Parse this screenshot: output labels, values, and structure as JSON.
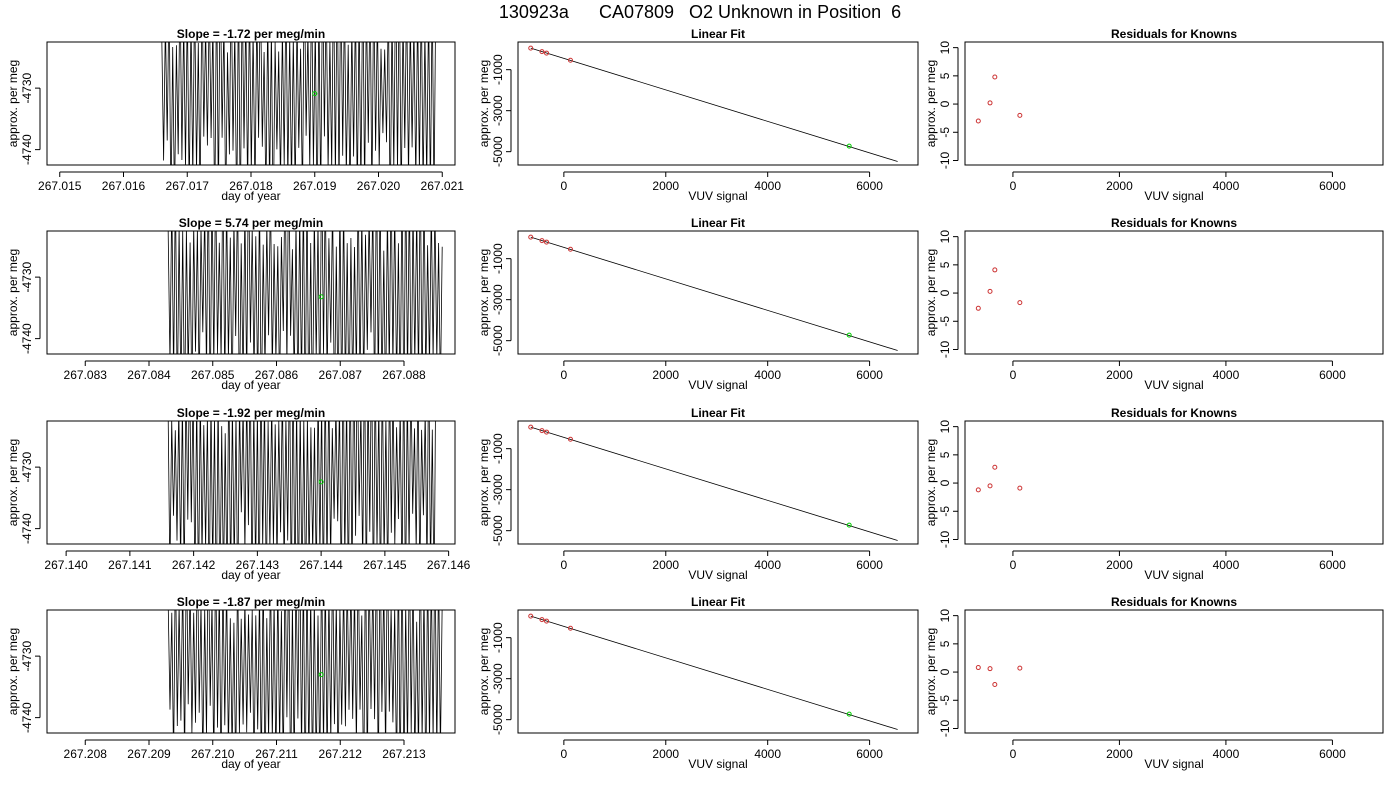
{
  "title": "130923a      CA07809   O2 Unknown in Position  6",
  "chart_data": [
    {
      "type": "line",
      "row": 0,
      "col": 0,
      "title": "Slope =  -1.72  per meg/min",
      "xlabel": "day of year",
      "ylabel": "approx. per meg",
      "xlim": [
        267.0148,
        267.0212
      ],
      "ylim": [
        -4742.5,
        -4722.5
      ],
      "xticks": [
        "267.015",
        "267.016",
        "267.017",
        "267.018",
        "267.019",
        "267.020",
        "267.021"
      ],
      "xtick_values": [
        267.015,
        267.016,
        267.017,
        267.018,
        267.019,
        267.02,
        267.021
      ],
      "yticks": [
        "-4740",
        "-4730"
      ],
      "ytick_values": [
        -4740,
        -4730
      ],
      "x_start": 267.0166,
      "x_end": 267.0209,
      "trace_center": -4731,
      "trace_amplitude": 18,
      "cycles": 75,
      "seed": 11,
      "marker": {
        "x": 267.019,
        "y": -4730.9,
        "color": "#00cc00"
      }
    },
    {
      "type": "line",
      "row": 0,
      "col": 1,
      "title": "Linear Fit",
      "xlabel": "VUV signal",
      "ylabel": "approx. per meg",
      "xlim": [
        -900,
        6950
      ],
      "ylim": [
        -5650,
        350
      ],
      "xticks": [
        "0",
        "2000",
        "4000",
        "6000"
      ],
      "xtick_values": [
        0,
        2000,
        4000,
        6000
      ],
      "yticks": [
        "-5000",
        "-3000",
        "-1000"
      ],
      "ytick_values": [
        -5000,
        -3000,
        -1000
      ],
      "fit_line": {
        "x": [
          -650,
          6550
        ],
        "y": [
          50,
          -5480
        ]
      },
      "knowns": {
        "x": [
          -650,
          -430,
          -340,
          130
        ],
        "y": [
          50,
          -120,
          -190,
          -540
        ]
      },
      "unknown": {
        "x": [
          5600
        ],
        "y": [
          -4730
        ]
      },
      "known_color": "#cc3333",
      "unknown_color": "#00cc00"
    },
    {
      "type": "scatter",
      "row": 0,
      "col": 2,
      "title": "Residuals for Knowns",
      "xlabel": "VUV signal",
      "ylabel": "approx. per meg",
      "xlim": [
        -900,
        6950
      ],
      "ylim": [
        -10.8,
        11
      ],
      "xticks": [
        "0",
        "2000",
        "4000",
        "6000"
      ],
      "xtick_values": [
        0,
        2000,
        4000,
        6000
      ],
      "yticks": [
        "-10",
        "-5",
        "0",
        "5",
        "10"
      ],
      "ytick_values": [
        -10,
        -5,
        0,
        5,
        10
      ],
      "points": {
        "x": [
          -650,
          -430,
          -340,
          130
        ],
        "y": [
          -3.0,
          0.2,
          4.8,
          -2.0
        ]
      },
      "point_color": "#cc3333"
    },
    {
      "type": "line",
      "row": 1,
      "col": 0,
      "title": "Slope =  5.74  per meg/min",
      "xlabel": "day of year",
      "ylabel": "approx. per meg",
      "xlim": [
        267.0824,
        267.0888
      ],
      "ylim": [
        -4742.5,
        -4722.5
      ],
      "xticks": [
        "267.083",
        "267.084",
        "267.085",
        "267.086",
        "267.087",
        "267.088"
      ],
      "xtick_values": [
        267.083,
        267.084,
        267.085,
        267.086,
        267.087,
        267.088
      ],
      "yticks": [
        "-4740",
        "-4730"
      ],
      "ytick_values": [
        -4740,
        -4730
      ],
      "x_start": 267.0843,
      "x_end": 267.0886,
      "trace_center": -4732,
      "trace_amplitude": 18,
      "cycles": 75,
      "seed": 23,
      "marker": {
        "x": 267.0867,
        "y": -4733.2,
        "color": "#00cc00"
      }
    },
    {
      "type": "line",
      "row": 1,
      "col": 1,
      "title": "Linear Fit",
      "xlabel": "VUV signal",
      "ylabel": "approx. per meg",
      "xlim": [
        -900,
        6950
      ],
      "ylim": [
        -5650,
        350
      ],
      "xticks": [
        "0",
        "2000",
        "4000",
        "6000"
      ],
      "xtick_values": [
        0,
        2000,
        4000,
        6000
      ],
      "yticks": [
        "-5000",
        "-3000",
        "-1000"
      ],
      "ytick_values": [
        -5000,
        -3000,
        -1000
      ],
      "fit_line": {
        "x": [
          -650,
          6550
        ],
        "y": [
          50,
          -5480
        ]
      },
      "knowns": {
        "x": [
          -650,
          -430,
          -340,
          130
        ],
        "y": [
          50,
          -120,
          -190,
          -540
        ]
      },
      "unknown": {
        "x": [
          5600
        ],
        "y": [
          -4730
        ]
      },
      "known_color": "#cc3333",
      "unknown_color": "#00cc00"
    },
    {
      "type": "scatter",
      "row": 1,
      "col": 2,
      "title": "Residuals for Knowns",
      "xlabel": "VUV signal",
      "ylabel": "approx. per meg",
      "xlim": [
        -900,
        6950
      ],
      "ylim": [
        -10.8,
        11
      ],
      "xticks": [
        "0",
        "2000",
        "4000",
        "6000"
      ],
      "xtick_values": [
        0,
        2000,
        4000,
        6000
      ],
      "yticks": [
        "-10",
        "-5",
        "0",
        "5",
        "10"
      ],
      "ytick_values": [
        -10,
        -5,
        0,
        5,
        10
      ],
      "points": {
        "x": [
          -650,
          -430,
          -340,
          130
        ],
        "y": [
          -2.7,
          0.3,
          4.1,
          -1.7
        ]
      },
      "point_color": "#cc3333"
    },
    {
      "type": "line",
      "row": 2,
      "col": 0,
      "title": "Slope =  -1.92  per meg/min",
      "xlabel": "day of year",
      "ylabel": "approx. per meg",
      "xlim": [
        267.1397,
        267.1461
      ],
      "ylim": [
        -4742.5,
        -4722.5
      ],
      "xticks": [
        "267.140",
        "267.141",
        "267.142",
        "267.143",
        "267.144",
        "267.145",
        "267.146"
      ],
      "xtick_values": [
        267.14,
        267.141,
        267.142,
        267.143,
        267.144,
        267.145,
        267.146
      ],
      "yticks": [
        "-4740",
        "-4730"
      ],
      "ytick_values": [
        -4740,
        -4730
      ],
      "x_start": 267.1416,
      "x_end": 267.1458,
      "trace_center": -4731,
      "trace_amplitude": 18,
      "cycles": 75,
      "seed": 37,
      "marker": {
        "x": 267.144,
        "y": -4732.4,
        "color": "#00cc00"
      }
    },
    {
      "type": "line",
      "row": 2,
      "col": 1,
      "title": "Linear Fit",
      "xlabel": "VUV signal",
      "ylabel": "approx. per meg",
      "xlim": [
        -900,
        6950
      ],
      "ylim": [
        -5650,
        350
      ],
      "xticks": [
        "0",
        "2000",
        "4000",
        "6000"
      ],
      "xtick_values": [
        0,
        2000,
        4000,
        6000
      ],
      "yticks": [
        "-5000",
        "-3000",
        "-1000"
      ],
      "ytick_values": [
        -5000,
        -3000,
        -1000
      ],
      "fit_line": {
        "x": [
          -650,
          6550
        ],
        "y": [
          50,
          -5480
        ]
      },
      "knowns": {
        "x": [
          -650,
          -430,
          -340,
          130
        ],
        "y": [
          50,
          -120,
          -190,
          -540
        ]
      },
      "unknown": {
        "x": [
          5600
        ],
        "y": [
          -4730
        ]
      },
      "known_color": "#cc3333",
      "unknown_color": "#00cc00"
    },
    {
      "type": "scatter",
      "row": 2,
      "col": 2,
      "title": "Residuals for Knowns",
      "xlabel": "VUV signal",
      "ylabel": "approx. per meg",
      "xlim": [
        -900,
        6950
      ],
      "ylim": [
        -10.8,
        11
      ],
      "xticks": [
        "0",
        "2000",
        "4000",
        "6000"
      ],
      "xtick_values": [
        0,
        2000,
        4000,
        6000
      ],
      "yticks": [
        "-10",
        "-5",
        "0",
        "5",
        "10"
      ],
      "ytick_values": [
        -10,
        -5,
        0,
        5,
        10
      ],
      "points": {
        "x": [
          -650,
          -430,
          -340,
          130
        ],
        "y": [
          -1.2,
          -0.5,
          2.8,
          -0.9
        ]
      },
      "point_color": "#cc3333"
    },
    {
      "type": "line",
      "row": 3,
      "col": 0,
      "title": "Slope =  -1.87  per meg/min",
      "xlabel": "day of year",
      "ylabel": "approx. per meg",
      "xlim": [
        267.2074,
        267.2138
      ],
      "ylim": [
        -4742.5,
        -4722.5
      ],
      "xticks": [
        "267.208",
        "267.209",
        "267.210",
        "267.211",
        "267.212",
        "267.213"
      ],
      "xtick_values": [
        267.208,
        267.209,
        267.21,
        267.211,
        267.212,
        267.213
      ],
      "yticks": [
        "-4740",
        "-4730"
      ],
      "ytick_values": [
        -4740,
        -4730
      ],
      "x_start": 267.2093,
      "x_end": 267.2136,
      "trace_center": -4731,
      "trace_amplitude": 18,
      "cycles": 75,
      "seed": 53,
      "marker": {
        "x": 267.2117,
        "y": -4733.0,
        "color": "#00cc00"
      }
    },
    {
      "type": "line",
      "row": 3,
      "col": 1,
      "title": "Linear Fit",
      "xlabel": "VUV signal",
      "ylabel": "approx. per meg",
      "xlim": [
        -900,
        6950
      ],
      "ylim": [
        -5650,
        350
      ],
      "xticks": [
        "0",
        "2000",
        "4000",
        "6000"
      ],
      "xtick_values": [
        0,
        2000,
        4000,
        6000
      ],
      "yticks": [
        "-5000",
        "-3000",
        "-1000"
      ],
      "ytick_values": [
        -5000,
        -3000,
        -1000
      ],
      "fit_line": {
        "x": [
          -650,
          6550
        ],
        "y": [
          50,
          -5480
        ]
      },
      "knowns": {
        "x": [
          -650,
          -430,
          -340,
          130
        ],
        "y": [
          50,
          -120,
          -190,
          -540
        ]
      },
      "unknown": {
        "x": [
          5600
        ],
        "y": [
          -4730
        ]
      },
      "known_color": "#cc3333",
      "unknown_color": "#00cc00"
    },
    {
      "type": "scatter",
      "row": 3,
      "col": 2,
      "title": "Residuals for Knowns",
      "xlabel": "VUV signal",
      "ylabel": "approx. per meg",
      "xlim": [
        -900,
        6950
      ],
      "ylim": [
        -10.8,
        11
      ],
      "xticks": [
        "0",
        "2000",
        "4000",
        "6000"
      ],
      "xtick_values": [
        0,
        2000,
        4000,
        6000
      ],
      "yticks": [
        "-10",
        "-5",
        "0",
        "5",
        "10"
      ],
      "ytick_values": [
        -10,
        -5,
        0,
        5,
        10
      ],
      "points": {
        "x": [
          -650,
          -430,
          -340,
          130
        ],
        "y": [
          0.8,
          0.6,
          -2.2,
          0.7
        ]
      },
      "point_color": "#cc3333"
    }
  ]
}
